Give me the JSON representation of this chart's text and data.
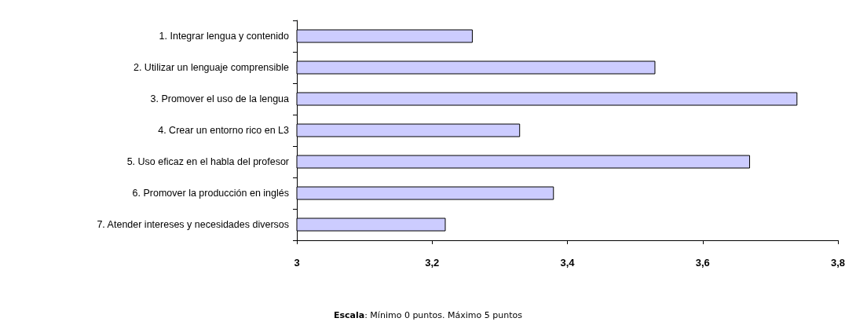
{
  "chart_data": {
    "type": "bar",
    "orientation": "horizontal",
    "categories": [
      "1. Integrar lengua y contenido",
      "2. Utilizar un lenguaje comprensible",
      "3. Promover el uso de la lengua",
      "4. Crear un entorno rico en L3",
      "5. Uso eficaz en el habla del profesor",
      "6. Promover la producción en inglés",
      "7. Atender intereses y necesidades diversos"
    ],
    "values": [
      3.26,
      3.53,
      3.74,
      3.33,
      3.67,
      3.38,
      3.22
    ],
    "color": "#ccccff",
    "xlim": [
      3,
      3.8
    ],
    "xticks": [
      {
        "value": 3,
        "label": "3"
      },
      {
        "value": 3.2,
        "label": "3,2"
      },
      {
        "value": 3.4,
        "label": "3,4"
      },
      {
        "value": 3.6,
        "label": "3,6"
      },
      {
        "value": 3.8,
        "label": "3,8"
      }
    ],
    "grid": false,
    "annotations": [
      "Escala: Mínimo 0 puntos. Máximo 5 puntos"
    ]
  }
}
